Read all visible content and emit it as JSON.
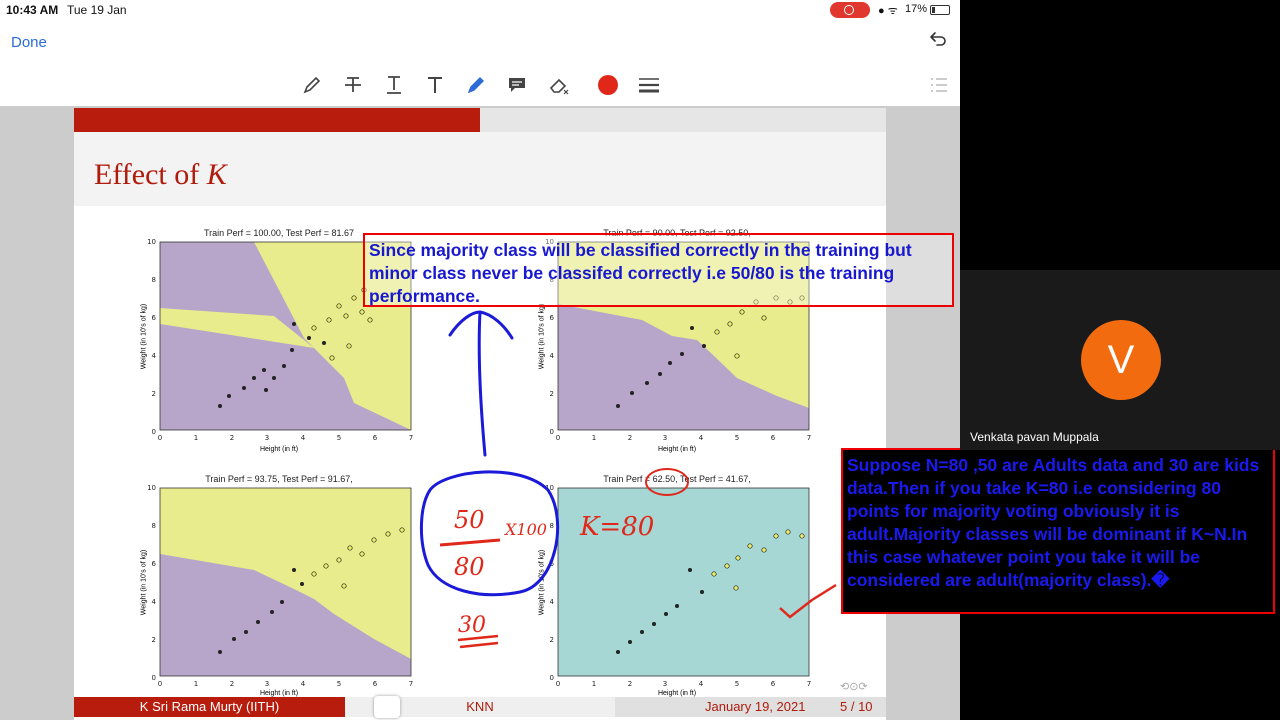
{
  "status_bar": {
    "time": "10:43 AM",
    "date": "Tue 19 Jan",
    "battery": "17%"
  },
  "nav": {
    "done_label": "Done",
    "undo_icon": "undo-icon"
  },
  "toolbar": {
    "tools": [
      "pen-icon",
      "strikethrough-text-icon",
      "underline-text-icon",
      "text-icon",
      "highlighter-pen-icon",
      "comment-icon",
      "eraser-icon",
      "red-color-swatch",
      "line-weight-icon"
    ],
    "active_color": "#e0281a"
  },
  "slide": {
    "title_prefix": "Effect of ",
    "title_k": "K",
    "plots": [
      {
        "title": "Train Perf = 100.00, Test Perf = 81.67",
        "xlabel": "Height (in ft)",
        "ylabel": "Weight (in 10's of kg)"
      },
      {
        "title": "Train Perf = 90.00, Test Perf = 92.50,",
        "xlabel": "Height (in ft)",
        "ylabel": "Weight (in 10's of kg)"
      },
      {
        "title": "Train Perf = 93.75, Test Perf = 91.67,",
        "xlabel": "Height (in ft)",
        "ylabel": "Weight (in 10's of kg)"
      },
      {
        "title": "Train Perf = 62.50, Test Perf = 41.67,",
        "xlabel": "Height (in ft)",
        "ylabel": "Weight (in 10's of kg)"
      }
    ],
    "footer": {
      "author": "K Sri Rama Murty  (IITH)",
      "topic": "KNN",
      "date": "January 19, 2021",
      "page": "5 / 10"
    }
  },
  "annotations": {
    "box1": "Since majority class will be classified correctly in the training but minor class never be classifed correctly i.e 50/80 is the training performance.",
    "box2": "Suppose N=80 ,50 are Adults data and 30 are kids data.Then if you take K=80 i.e considering 80 points for majority voting obviously it is adult.Majority classes will be dominant if K~N.In this case whatever point you take it will be considered are adult(majority class).�",
    "handwriting": {
      "fraction_num": "50",
      "fraction_den": "80",
      "multiplier": "X100",
      "kids": "30",
      "k_value": "K=80"
    }
  },
  "participant": {
    "initial": "V",
    "name": "Venkata pavan Muppala"
  },
  "colors": {
    "slide_red": "#b71c0c",
    "ink_blue": "#1a1af0",
    "ink_red": "#e0281a",
    "region_yellow": "#e8ec8c",
    "region_purple": "#b7a6c9",
    "region_teal": "#a6d7d4"
  }
}
